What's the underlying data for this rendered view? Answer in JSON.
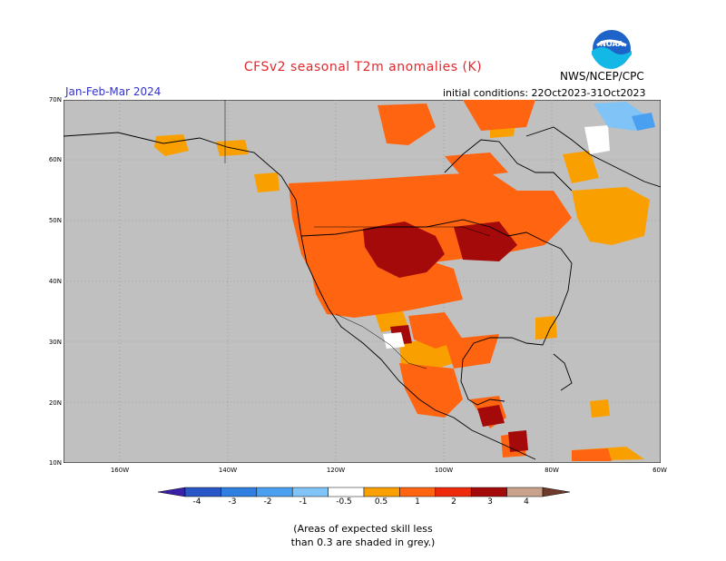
{
  "title": "CFSv2 seasonal T2m anomalies (K)",
  "season": "Jan-Feb-Mar 2024",
  "initial_conditions": "initial conditions: 22Oct2023-31Oct2023",
  "agency": "NWS/NCEP/CPC",
  "logo_text": "NOAA",
  "lat_labels": [
    "70N",
    "60N",
    "50N",
    "40N",
    "30N",
    "20N",
    "10N"
  ],
  "lon_labels": [
    "160W",
    "140W",
    "120W",
    "100W",
    "80W",
    "60W"
  ],
  "colorbar": {
    "labels": [
      "-4",
      "-3",
      "-2",
      "-1",
      "-0.5",
      "0.5",
      "1",
      "2",
      "3",
      "4"
    ],
    "colors": [
      "#3a1fa8",
      "#2a57c8",
      "#2f7fe0",
      "#4aa0f0",
      "#7fc3f7",
      "#ffffff",
      "#f9a000",
      "#ff6410",
      "#ee2a0a",
      "#a50a0a",
      "#c8a28a",
      "#6f3a2a"
    ]
  },
  "note_line1": "(Areas of expected skill less",
  "note_line2": "than 0.3 are shaded in grey.)"
}
